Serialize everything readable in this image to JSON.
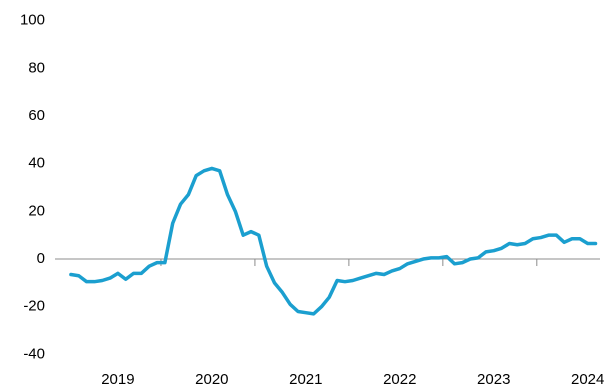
{
  "chart_data": {
    "type": "line",
    "categories": [
      null,
      null,
      null,
      null,
      null,
      null,
      "2019",
      null,
      null,
      null,
      null,
      null,
      null,
      null,
      null,
      null,
      null,
      null,
      "2020",
      null,
      null,
      null,
      null,
      null,
      null,
      null,
      null,
      null,
      null,
      null,
      "2021",
      null,
      null,
      null,
      null,
      null,
      null,
      null,
      null,
      null,
      null,
      null,
      "2022",
      null,
      null,
      null,
      null,
      null,
      null,
      null,
      null,
      null,
      null,
      null,
      "2023",
      null,
      null,
      null,
      null,
      null,
      null,
      null,
      null,
      null,
      null,
      null,
      "2024",
      null
    ],
    "series": [
      {
        "color": "#1b9fcf",
        "values": [
          -6.5,
          -7,
          -9.5,
          -9.5,
          -9,
          -8,
          -6,
          -8.5,
          -6,
          -6,
          -3,
          -1.5,
          -1.5,
          15,
          23,
          27,
          35,
          37,
          38,
          37,
          27,
          20,
          10,
          11.5,
          10,
          -3,
          -10,
          -14,
          -19,
          -22,
          -22.5,
          -23,
          -20,
          -16,
          -9,
          -9.5,
          -9,
          -8,
          -7,
          -6,
          -6.5,
          -5,
          -4,
          -2,
          -1,
          0,
          0.5,
          0.5,
          1,
          -2,
          -1.5,
          0,
          0.5,
          3,
          3.5,
          4.5,
          6.5,
          6,
          6.5,
          8.5,
          9,
          10,
          10,
          7,
          8.5,
          8.5,
          6.5,
          6.5
        ]
      }
    ],
    "ylim": [
      -40,
      100
    ],
    "yticks": [
      -40,
      -20,
      0,
      20,
      40,
      60,
      80,
      100
    ],
    "grid": false
  }
}
